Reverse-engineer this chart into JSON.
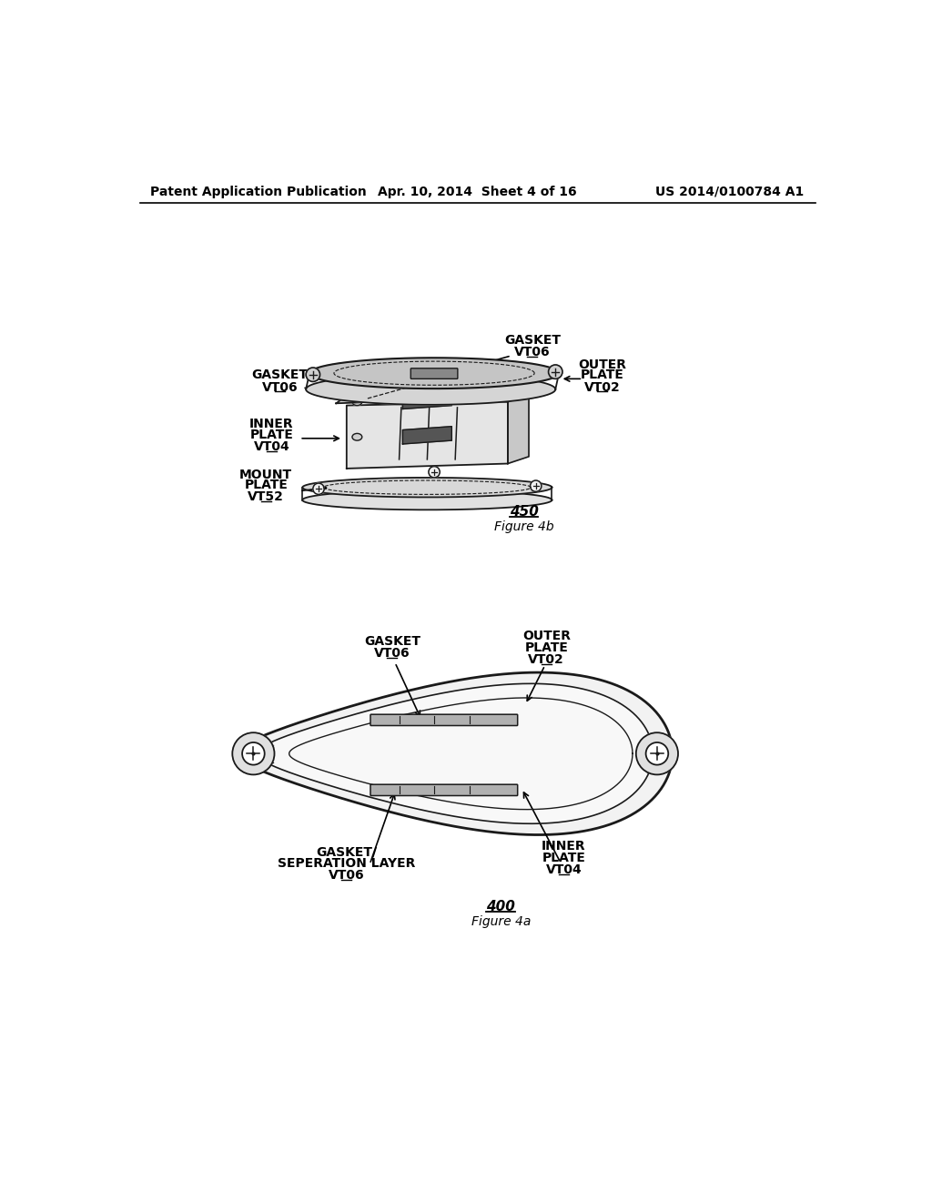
{
  "background_color": "#ffffff",
  "header_left": "Patent Application Publication",
  "header_center": "Apr. 10, 2014  Sheet 4 of 16",
  "header_right": "US 2014/0100784 A1",
  "fig4b_label": "450",
  "fig4b_caption": "Figure 4b",
  "fig4a_label": "400",
  "fig4a_caption": "Figure 4a",
  "dk": "#1a1a1a",
  "lw": 1.5
}
